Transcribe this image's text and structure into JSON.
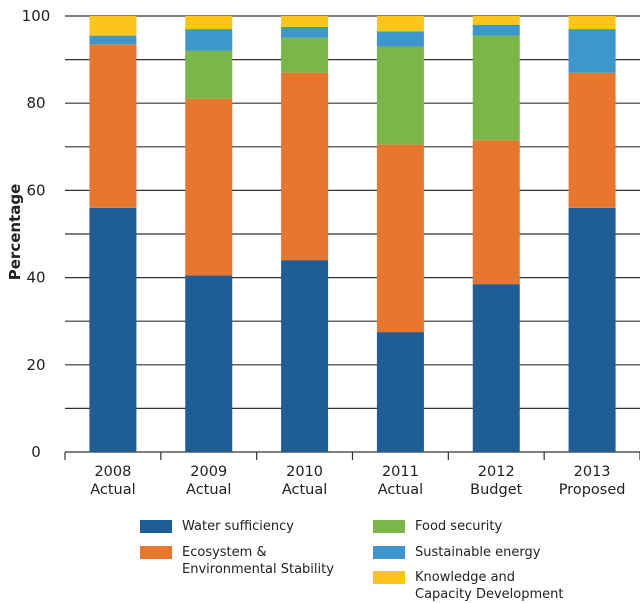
{
  "chart_data": {
    "type": "bar",
    "stacked": true,
    "categories": [
      "2008 Actual",
      "2009 Actual",
      "2010 Actual",
      "2011 Actual",
      "2012 Budget",
      "2013 Proposed"
    ],
    "category_lines": [
      [
        "2008",
        "Actual"
      ],
      [
        "2009",
        "Actual"
      ],
      [
        "2010",
        "Actual"
      ],
      [
        "2011",
        "Actual"
      ],
      [
        "2012",
        "Budget"
      ],
      [
        "2013",
        "Proposed"
      ]
    ],
    "series": [
      {
        "name": "Water sufficiency",
        "color": "#1f5d96",
        "values": [
          56,
          40.5,
          44,
          27.5,
          38.5,
          56
        ]
      },
      {
        "name": "Ecosystem & Environmental Stability",
        "color": "#e8762d",
        "values": [
          37.5,
          40.5,
          43,
          43,
          33,
          31
        ]
      },
      {
        "name": "Food security",
        "color": "#7ab648",
        "values": [
          0,
          11,
          8,
          22.5,
          24,
          0
        ]
      },
      {
        "name": "Sustainable energy",
        "color": "#3d96cc",
        "values": [
          2,
          5,
          2.5,
          3.5,
          2.5,
          10
        ]
      },
      {
        "name": "Knowledge and Capacity Development",
        "color": "#fbc51a",
        "values": [
          4.5,
          3,
          2.5,
          3.5,
          2,
          3
        ]
      }
    ],
    "legend_lines": [
      [
        "Water sufficiency"
      ],
      [
        "Ecosystem &",
        "Environmental Stability"
      ],
      [
        "Food security"
      ],
      [
        "Sustainable energy"
      ],
      [
        "Knowledge and",
        "Capacity Development"
      ]
    ],
    "xlabel": "",
    "ylabel": "Percentage",
    "yticks": [
      0,
      20,
      40,
      60,
      80,
      100
    ],
    "ylim": [
      0,
      100
    ],
    "grid": true,
    "legend_position": "bottom"
  }
}
